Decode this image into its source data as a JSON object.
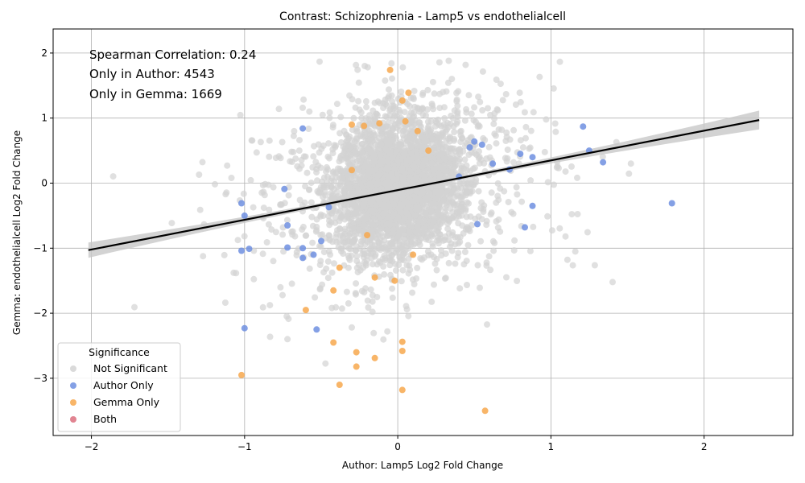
{
  "chart_data": {
    "type": "scatter",
    "title": "Contrast: Schizophrenia - Lamp5 vs endothelialcell",
    "xlabel": "Author: Lamp5 Log2 Fold Change",
    "ylabel": "Gemma: endothelialcell Log2 Fold Change",
    "xlim": [
      -2.25,
      2.58
    ],
    "ylim": [
      -3.88,
      2.37
    ],
    "xticks": [
      -2,
      -1,
      0,
      1,
      2
    ],
    "yticks": [
      -3,
      -2,
      -1,
      0,
      1,
      2
    ],
    "grid": true,
    "annotations": [
      "Spearman Correlation: 0.24",
      "Only in Author: 4543",
      "Only in Gemma: 1669"
    ],
    "legend": {
      "title": "Significance",
      "placement": "lower-left",
      "entries": [
        {
          "name": "Not Significant",
          "color": "#d3d3d3"
        },
        {
          "name": "Author Only",
          "color": "#6f8fe0"
        },
        {
          "name": "Gemma Only",
          "color": "#f7a84e"
        },
        {
          "name": "Both",
          "color": "#dc6f7e"
        }
      ]
    },
    "regression": {
      "x": [
        -2.02,
        2.36
      ],
      "y": [
        -1.03,
        0.97
      ],
      "color": "#000000"
    },
    "series": [
      {
        "name": "Author Only",
        "color": "#6f8fe0",
        "points": [
          [
            -0.62,
            0.84
          ],
          [
            1.21,
            0.87
          ],
          [
            1.25,
            0.5
          ],
          [
            1.34,
            0.32
          ],
          [
            1.79,
            -0.31
          ],
          [
            -1.02,
            -0.31
          ],
          [
            -1.0,
            -0.5
          ],
          [
            -1.02,
            -1.04
          ],
          [
            -0.97,
            -1.01
          ],
          [
            -1.0,
            -2.23
          ],
          [
            -0.53,
            -2.25
          ],
          [
            -0.74,
            -0.09
          ],
          [
            -0.72,
            -0.65
          ],
          [
            -0.72,
            -0.99
          ],
          [
            -0.62,
            -1.0
          ],
          [
            -0.62,
            -1.15
          ],
          [
            -0.55,
            -1.1
          ],
          [
            0.5,
            0.64
          ],
          [
            0.55,
            0.59
          ],
          [
            0.62,
            0.3
          ],
          [
            0.8,
            0.45
          ],
          [
            0.83,
            -0.68
          ],
          [
            0.88,
            -0.35
          ],
          [
            0.52,
            -0.63
          ],
          [
            0.47,
            0.55
          ],
          [
            0.4,
            0.1
          ],
          [
            0.73,
            0.21
          ],
          [
            0.88,
            0.4
          ],
          [
            -0.45,
            -0.37
          ],
          [
            -0.5,
            -0.89
          ]
        ]
      },
      {
        "name": "Gemma Only",
        "color": "#f7a84e",
        "points": [
          [
            -0.05,
            1.74
          ],
          [
            0.07,
            1.39
          ],
          [
            0.03,
            1.27
          ],
          [
            -0.3,
            0.9
          ],
          [
            -0.22,
            0.88
          ],
          [
            -0.12,
            0.92
          ],
          [
            0.13,
            0.8
          ],
          [
            -0.6,
            -1.95
          ],
          [
            -0.42,
            -1.65
          ],
          [
            -0.38,
            -1.3
          ],
          [
            -0.42,
            -2.45
          ],
          [
            -0.27,
            -2.6
          ],
          [
            -0.27,
            -2.82
          ],
          [
            -0.15,
            -2.69
          ],
          [
            0.03,
            -2.44
          ],
          [
            0.03,
            -2.58
          ],
          [
            -0.38,
            -3.1
          ],
          [
            0.03,
            -3.18
          ],
          [
            -1.02,
            -2.95
          ],
          [
            0.57,
            -3.5
          ],
          [
            -0.15,
            -1.45
          ],
          [
            -0.02,
            -1.5
          ],
          [
            0.05,
            0.95
          ],
          [
            -0.2,
            -0.8
          ],
          [
            0.1,
            -1.1
          ],
          [
            -0.3,
            0.2
          ],
          [
            0.2,
            0.5
          ]
        ]
      },
      {
        "name": "Both",
        "color": "#dc6f7e",
        "points": []
      }
    ]
  }
}
